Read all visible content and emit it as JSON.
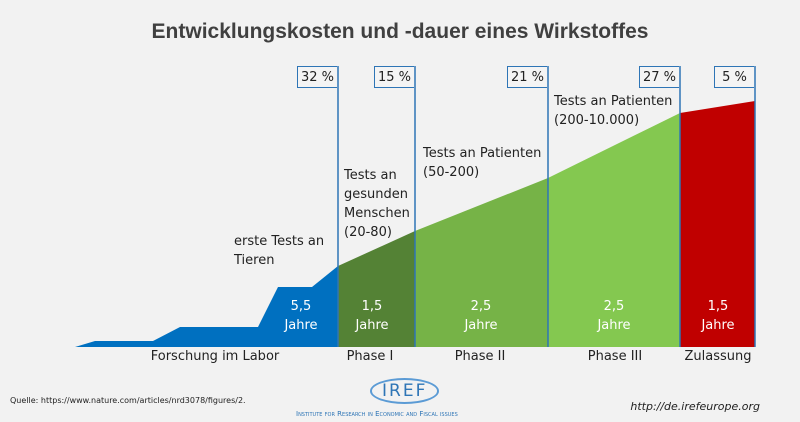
{
  "title": "Entwicklungskosten und -dauer eines Wirkstoffes",
  "colors": {
    "labor": "#0070c0",
    "phase1": "#548235",
    "phase2": "#76b347",
    "phase3": "#84c850",
    "zulassung": "#c00000",
    "line": "#2e75b6"
  },
  "stages": [
    {
      "phase": "Forschung im Labor",
      "share": "32 %",
      "years": "5,5",
      "unit": "Jahre",
      "note": "erste Tests an Tieren"
    },
    {
      "phase": "Phase I",
      "share": "15 %",
      "years": "1,5",
      "unit": "Jahre",
      "note": "Tests an gesunden Menschen (20-80)"
    },
    {
      "phase": "Phase II",
      "share": "21 %",
      "years": "2,5",
      "unit": "Jahre",
      "note": "Tests an Patienten (50-200)"
    },
    {
      "phase": "Phase III",
      "share": "27 %",
      "years": "2,5",
      "unit": "Jahre",
      "note": "Tests an Patienten (200-10.000)"
    },
    {
      "phase": "Zulassung",
      "share": "5 %",
      "years": "1,5",
      "unit": "Jahre",
      "note": ""
    }
  ],
  "footer": {
    "source": "Quelle:  https://www.nature.com/articles/nrd3078/figures/2.",
    "logo": "IREF",
    "institute": "Institute for Research in Economic and Fiscal issues",
    "url": "http://de.irefeurope.org"
  }
}
